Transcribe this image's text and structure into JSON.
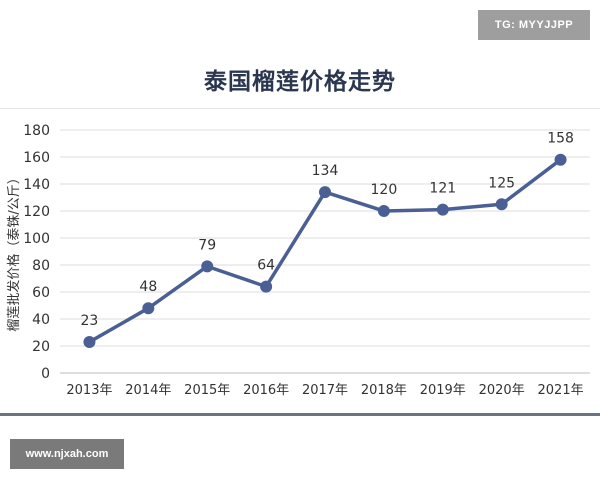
{
  "watermarks": {
    "tg": "TG: MYYJJPP",
    "site": "www.njxah.com"
  },
  "colors": {
    "line": "#4a5f93",
    "marker": "#4a5f93",
    "grid": "#dcdcdc",
    "text": "#333333",
    "title": "#2b3750"
  },
  "chart_data": {
    "type": "line",
    "title": "泰国榴莲价格走势",
    "xlabel": "",
    "ylabel": "榴莲批发价格（泰铢/公斤）",
    "categories": [
      "2013年",
      "2014年",
      "2015年",
      "2016年",
      "2017年",
      "2018年",
      "2019年",
      "2020年",
      "2021年"
    ],
    "series": [
      {
        "values": [
          23,
          48,
          79,
          64,
          134,
          120,
          121,
          125,
          158
        ]
      }
    ],
    "data_labels": [
      "23",
      "48",
      "79",
      "64",
      "134",
      "120",
      "121",
      "125",
      "158"
    ],
    "ylim": [
      0,
      180
    ],
    "yticks": [
      0,
      20,
      40,
      60,
      80,
      100,
      120,
      140,
      160,
      180
    ],
    "grid": true,
    "legend": "none"
  }
}
